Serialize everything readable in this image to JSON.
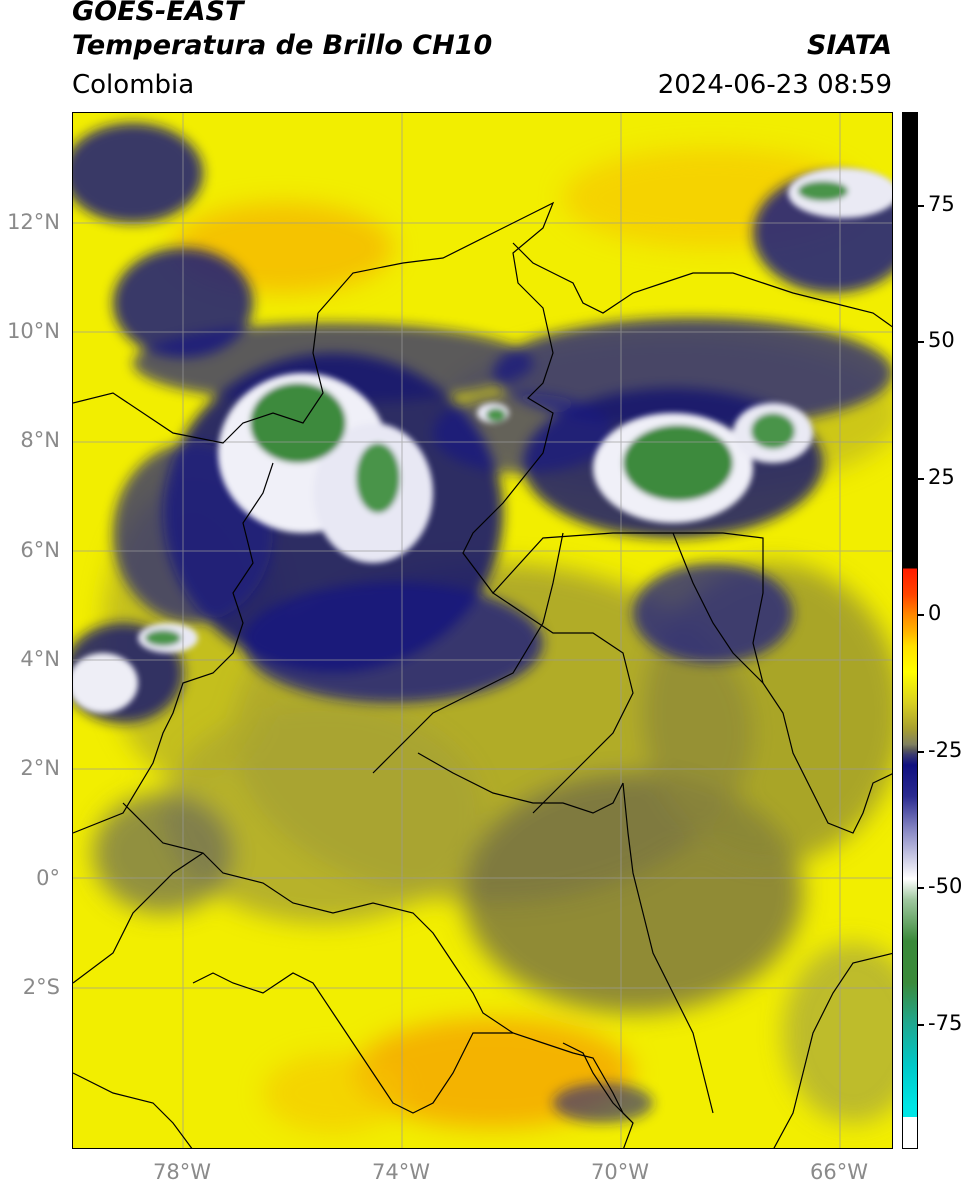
{
  "header": {
    "satellite": "GOES-EAST",
    "product": "Temperatura de Brillo CH10",
    "source": "SIATA",
    "region": "Colombia",
    "timestamp": "2024-06-23 08:59"
  },
  "map": {
    "lat_labels": [
      "12°N",
      "10°N",
      "8°N",
      "6°N",
      "4°N",
      "2°N",
      "0°",
      "2°S"
    ],
    "lon_labels": [
      "78°W",
      "74°W",
      "70°W",
      "66°W"
    ],
    "extent": {
      "lon_min": -80,
      "lon_max": -65,
      "lat_min": -5,
      "lat_max": 14
    }
  },
  "colorbar": {
    "labels": [
      "75",
      "50",
      "25",
      "0",
      "-25",
      "-50",
      "-75"
    ],
    "colors": {
      "black": "#000000",
      "red": "#ff2a00",
      "orange": "#ff9900",
      "yellow": "#ffff00",
      "olive": "#8c8c2a",
      "gray": "#5a5a5a",
      "navy": "#101070",
      "white": "#ffffff",
      "green": "#3a8a3a",
      "teal": "#20b0a0",
      "cyan": "#00e5e5"
    }
  }
}
